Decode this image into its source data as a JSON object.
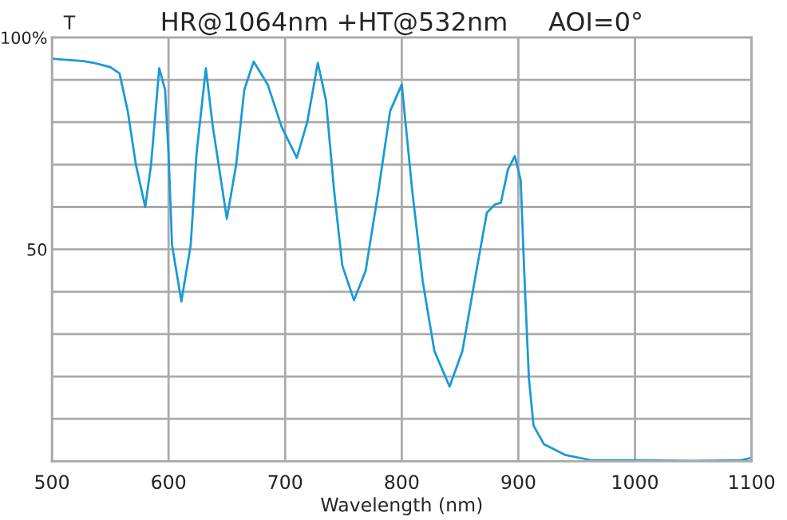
{
  "chart_data": {
    "type": "line",
    "title": "HR@1064nm +HT@532nm     AOI=0°",
    "xlabel": "Wavelength (nm)",
    "ylabel": "T",
    "x": [
      500,
      527,
      536,
      550,
      558,
      565,
      572,
      580,
      585,
      592,
      597,
      600,
      603,
      611,
      619,
      624,
      632,
      638,
      650,
      658,
      665,
      673,
      685,
      697,
      710,
      719,
      728,
      735,
      742,
      749,
      759,
      769,
      780,
      790,
      800,
      809,
      818,
      828,
      841,
      852,
      864,
      873,
      880,
      885,
      891,
      897,
      902,
      905,
      909,
      913,
      922,
      940,
      963,
      1000,
      1050,
      1090,
      1100
    ],
    "series": [
      {
        "color": "#1a9ad6",
        "values": [
          95,
          94.4,
          94,
          93,
          91.5,
          82.6,
          70,
          60,
          70,
          92.7,
          87.7,
          72.6,
          51,
          37.7,
          51,
          72.6,
          92.7,
          78.9,
          57.2,
          70,
          87.7,
          94.3,
          88.9,
          78.9,
          71.6,
          80.1,
          94,
          85.2,
          63.8,
          46.2,
          38,
          44.9,
          63.8,
          82.6,
          88.9,
          63.8,
          42.4,
          26,
          17.6,
          26,
          44.9,
          58.7,
          60.6,
          61,
          68.8,
          72,
          66.3,
          44.9,
          19.7,
          8.4,
          4,
          1.5,
          0.2,
          0.2,
          0.1,
          0.2,
          0.8
        ]
      }
    ],
    "xlim": [
      500,
      1100
    ],
    "ylim": [
      0,
      100
    ],
    "xticks": [
      500,
      600,
      700,
      800,
      900,
      1000,
      1100
    ],
    "yticks": [
      {
        "value": 0,
        "label": null
      },
      {
        "value": 10,
        "label": null
      },
      {
        "value": 20,
        "label": null
      },
      {
        "value": 30,
        "label": null
      },
      {
        "value": 40,
        "label": null
      },
      {
        "value": 50,
        "label": "50"
      },
      {
        "value": 60,
        "label": null
      },
      {
        "value": 70,
        "label": null
      },
      {
        "value": 80,
        "label": null
      },
      {
        "value": 90,
        "label": null
      },
      {
        "value": 100,
        "label": "100%"
      }
    ],
    "grid": true,
    "legend": false,
    "marker": "none",
    "line_style": "solid"
  }
}
